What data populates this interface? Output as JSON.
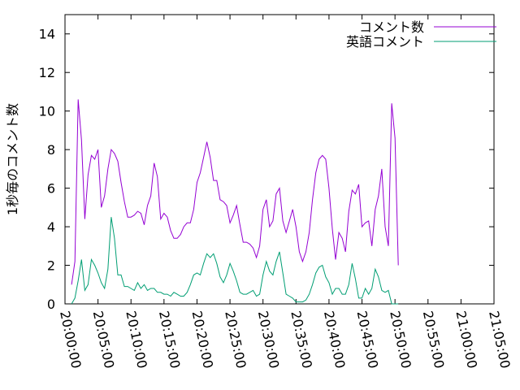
{
  "chart_data": {
    "type": "line",
    "title": "",
    "xlabel": "",
    "ylabel": "1秒毎のコメント数",
    "x_range": [
      "20:00:00",
      "21:05:00"
    ],
    "ylim": [
      0,
      15
    ],
    "y_ticks": [
      "0",
      "2",
      "4",
      "6",
      "8",
      "10",
      "12",
      "14"
    ],
    "x_ticks": [
      "20:00:00",
      "20:05:00",
      "20:10:00",
      "20:15:00",
      "20:20:00",
      "20:25:00",
      "20:30:00",
      "20:35:00",
      "20:40:00",
      "20:45:00",
      "20:50:00",
      "20:55:00",
      "21:00:00",
      "21:05:00"
    ],
    "grid": false,
    "legend_position": "top-right",
    "series": [
      {
        "name": "コメント数",
        "color": "#9400d3",
        "points": [
          [
            "20:01:00",
            1.0
          ],
          [
            "20:01:30",
            2.2
          ],
          [
            "20:02:00",
            10.6
          ],
          [
            "20:02:30",
            8.5
          ],
          [
            "20:03:00",
            4.4
          ],
          [
            "20:03:30",
            6.7
          ],
          [
            "20:04:00",
            7.7
          ],
          [
            "20:04:30",
            7.5
          ],
          [
            "20:05:00",
            8.0
          ],
          [
            "20:05:30",
            5.0
          ],
          [
            "20:06:00",
            5.6
          ],
          [
            "20:06:30",
            7.0
          ],
          [
            "20:07:00",
            8.0
          ],
          [
            "20:07:30",
            7.8
          ],
          [
            "20:08:00",
            7.4
          ],
          [
            "20:08:30",
            6.3
          ],
          [
            "20:09:00",
            5.3
          ],
          [
            "20:09:30",
            4.5
          ],
          [
            "20:10:00",
            4.5
          ],
          [
            "20:10:30",
            4.6
          ],
          [
            "20:11:00",
            4.8
          ],
          [
            "20:11:30",
            4.7
          ],
          [
            "20:12:00",
            4.1
          ],
          [
            "20:12:30",
            5.1
          ],
          [
            "20:13:00",
            5.6
          ],
          [
            "20:13:30",
            7.3
          ],
          [
            "20:14:00",
            6.6
          ],
          [
            "20:14:30",
            4.4
          ],
          [
            "20:15:00",
            4.7
          ],
          [
            "20:15:30",
            4.5
          ],
          [
            "20:16:00",
            3.8
          ],
          [
            "20:16:30",
            3.4
          ],
          [
            "20:17:00",
            3.4
          ],
          [
            "20:17:30",
            3.6
          ],
          [
            "20:18:00",
            4.0
          ],
          [
            "20:18:30",
            4.2
          ],
          [
            "20:19:00",
            4.2
          ],
          [
            "20:19:30",
            4.9
          ],
          [
            "20:20:00",
            6.3
          ],
          [
            "20:20:30",
            6.8
          ],
          [
            "20:21:00",
            7.6
          ],
          [
            "20:21:30",
            8.4
          ],
          [
            "20:22:00",
            7.6
          ],
          [
            "20:22:30",
            6.4
          ],
          [
            "20:23:00",
            6.4
          ],
          [
            "20:23:30",
            5.4
          ],
          [
            "20:24:00",
            5.3
          ],
          [
            "20:24:30",
            5.1
          ],
          [
            "20:25:00",
            4.2
          ],
          [
            "20:25:30",
            4.6
          ],
          [
            "20:26:00",
            5.1
          ],
          [
            "20:26:30",
            4.1
          ],
          [
            "20:27:00",
            3.2
          ],
          [
            "20:27:30",
            3.2
          ],
          [
            "20:28:00",
            3.1
          ],
          [
            "20:28:30",
            2.9
          ],
          [
            "20:29:00",
            2.4
          ],
          [
            "20:29:30",
            3.0
          ],
          [
            "20:30:00",
            4.9
          ],
          [
            "20:30:30",
            5.4
          ],
          [
            "20:31:00",
            4.0
          ],
          [
            "20:31:30",
            4.3
          ],
          [
            "20:32:00",
            5.7
          ],
          [
            "20:32:30",
            6.0
          ],
          [
            "20:33:00",
            4.3
          ],
          [
            "20:33:30",
            3.7
          ],
          [
            "20:34:00",
            4.3
          ],
          [
            "20:34:30",
            4.9
          ],
          [
            "20:35:00",
            4.0
          ],
          [
            "20:35:30",
            2.7
          ],
          [
            "20:36:00",
            2.2
          ],
          [
            "20:36:30",
            2.7
          ],
          [
            "20:37:00",
            3.7
          ],
          [
            "20:37:30",
            5.4
          ],
          [
            "20:38:00",
            6.8
          ],
          [
            "20:38:30",
            7.5
          ],
          [
            "20:39:00",
            7.7
          ],
          [
            "20:39:30",
            7.5
          ],
          [
            "20:40:00",
            6.0
          ],
          [
            "20:40:30",
            3.9
          ],
          [
            "20:41:00",
            2.3
          ],
          [
            "20:41:30",
            3.7
          ],
          [
            "20:42:00",
            3.4
          ],
          [
            "20:42:30",
            2.7
          ],
          [
            "20:43:00",
            4.8
          ],
          [
            "20:43:30",
            5.9
          ],
          [
            "20:44:00",
            5.7
          ],
          [
            "20:44:30",
            6.2
          ],
          [
            "20:45:00",
            4.0
          ],
          [
            "20:45:30",
            4.2
          ],
          [
            "20:46:00",
            4.3
          ],
          [
            "20:46:30",
            3.0
          ],
          [
            "20:47:00",
            4.9
          ],
          [
            "20:47:30",
            5.6
          ],
          [
            "20:48:00",
            7.0
          ],
          [
            "20:48:30",
            4.0
          ],
          [
            "20:49:00",
            3.0
          ],
          [
            "20:49:30",
            10.4
          ],
          [
            "20:50:00",
            8.6
          ],
          [
            "20:50:30",
            2.0
          ]
        ]
      },
      {
        "name": "英語コメント",
        "color": "#009e73",
        "points": [
          [
            "20:01:00",
            0.0
          ],
          [
            "20:01:30",
            0.3
          ],
          [
            "20:02:00",
            1.2
          ],
          [
            "20:02:30",
            2.3
          ],
          [
            "20:03:00",
            0.7
          ],
          [
            "20:03:30",
            1.0
          ],
          [
            "20:04:00",
            2.3
          ],
          [
            "20:04:30",
            2.0
          ],
          [
            "20:05:00",
            1.6
          ],
          [
            "20:05:30",
            1.1
          ],
          [
            "20:06:00",
            0.8
          ],
          [
            "20:06:30",
            1.8
          ],
          [
            "20:07:00",
            4.5
          ],
          [
            "20:07:30",
            3.4
          ],
          [
            "20:08:00",
            1.5
          ],
          [
            "20:08:30",
            1.5
          ],
          [
            "20:09:00",
            0.9
          ],
          [
            "20:09:30",
            0.9
          ],
          [
            "20:10:00",
            0.8
          ],
          [
            "20:10:30",
            0.7
          ],
          [
            "20:11:00",
            1.1
          ],
          [
            "20:11:30",
            0.8
          ],
          [
            "20:12:00",
            1.0
          ],
          [
            "20:12:30",
            0.7
          ],
          [
            "20:13:00",
            0.8
          ],
          [
            "20:13:30",
            0.8
          ],
          [
            "20:14:00",
            0.6
          ],
          [
            "20:14:30",
            0.6
          ],
          [
            "20:15:00",
            0.5
          ],
          [
            "20:15:30",
            0.5
          ],
          [
            "20:16:00",
            0.4
          ],
          [
            "20:16:30",
            0.6
          ],
          [
            "20:17:00",
            0.5
          ],
          [
            "20:17:30",
            0.4
          ],
          [
            "20:18:00",
            0.4
          ],
          [
            "20:18:30",
            0.6
          ],
          [
            "20:19:00",
            1.0
          ],
          [
            "20:19:30",
            1.5
          ],
          [
            "20:20:00",
            1.6
          ],
          [
            "20:20:30",
            1.5
          ],
          [
            "20:21:00",
            2.1
          ],
          [
            "20:21:30",
            2.6
          ],
          [
            "20:22:00",
            2.4
          ],
          [
            "20:22:30",
            2.6
          ],
          [
            "20:23:00",
            2.1
          ],
          [
            "20:23:30",
            1.4
          ],
          [
            "20:24:00",
            1.1
          ],
          [
            "20:24:30",
            1.5
          ],
          [
            "20:25:00",
            2.1
          ],
          [
            "20:25:30",
            1.7
          ],
          [
            "20:26:00",
            1.2
          ],
          [
            "20:26:30",
            0.6
          ],
          [
            "20:27:00",
            0.5
          ],
          [
            "20:27:30",
            0.5
          ],
          [
            "20:28:00",
            0.6
          ],
          [
            "20:28:30",
            0.7
          ],
          [
            "20:29:00",
            0.4
          ],
          [
            "20:29:30",
            0.5
          ],
          [
            "20:30:00",
            1.5
          ],
          [
            "20:30:30",
            2.2
          ],
          [
            "20:31:00",
            1.7
          ],
          [
            "20:31:30",
            1.5
          ],
          [
            "20:32:00",
            2.2
          ],
          [
            "20:32:30",
            2.7
          ],
          [
            "20:33:00",
            1.6
          ],
          [
            "20:33:30",
            0.5
          ],
          [
            "20:34:00",
            0.4
          ],
          [
            "20:34:30",
            0.3
          ],
          [
            "20:35:00",
            0.1
          ],
          [
            "20:35:30",
            0.1
          ],
          [
            "20:36:00",
            0.1
          ],
          [
            "20:36:30",
            0.2
          ],
          [
            "20:37:00",
            0.5
          ],
          [
            "20:37:30",
            1.0
          ],
          [
            "20:38:00",
            1.6
          ],
          [
            "20:38:30",
            1.9
          ],
          [
            "20:39:00",
            2.0
          ],
          [
            "20:39:30",
            1.4
          ],
          [
            "20:40:00",
            1.1
          ],
          [
            "20:40:30",
            0.5
          ],
          [
            "20:41:00",
            0.8
          ],
          [
            "20:41:30",
            0.8
          ],
          [
            "20:42:00",
            0.5
          ],
          [
            "20:42:30",
            0.5
          ],
          [
            "20:43:00",
            1.0
          ],
          [
            "20:43:30",
            2.1
          ],
          [
            "20:44:00",
            1.3
          ],
          [
            "20:44:30",
            0.3
          ],
          [
            "20:45:00",
            0.3
          ],
          [
            "20:45:30",
            0.8
          ],
          [
            "20:46:00",
            0.5
          ],
          [
            "20:46:30",
            0.8
          ],
          [
            "20:47:00",
            1.8
          ],
          [
            "20:47:30",
            1.4
          ],
          [
            "20:48:00",
            0.7
          ],
          [
            "20:48:30",
            0.6
          ],
          [
            "20:49:00",
            0.7
          ],
          [
            "20:49:30",
            0.0
          ],
          [
            "20:50:00",
            0.0
          ],
          [
            "20:50:30",
            0.0
          ]
        ]
      }
    ]
  }
}
